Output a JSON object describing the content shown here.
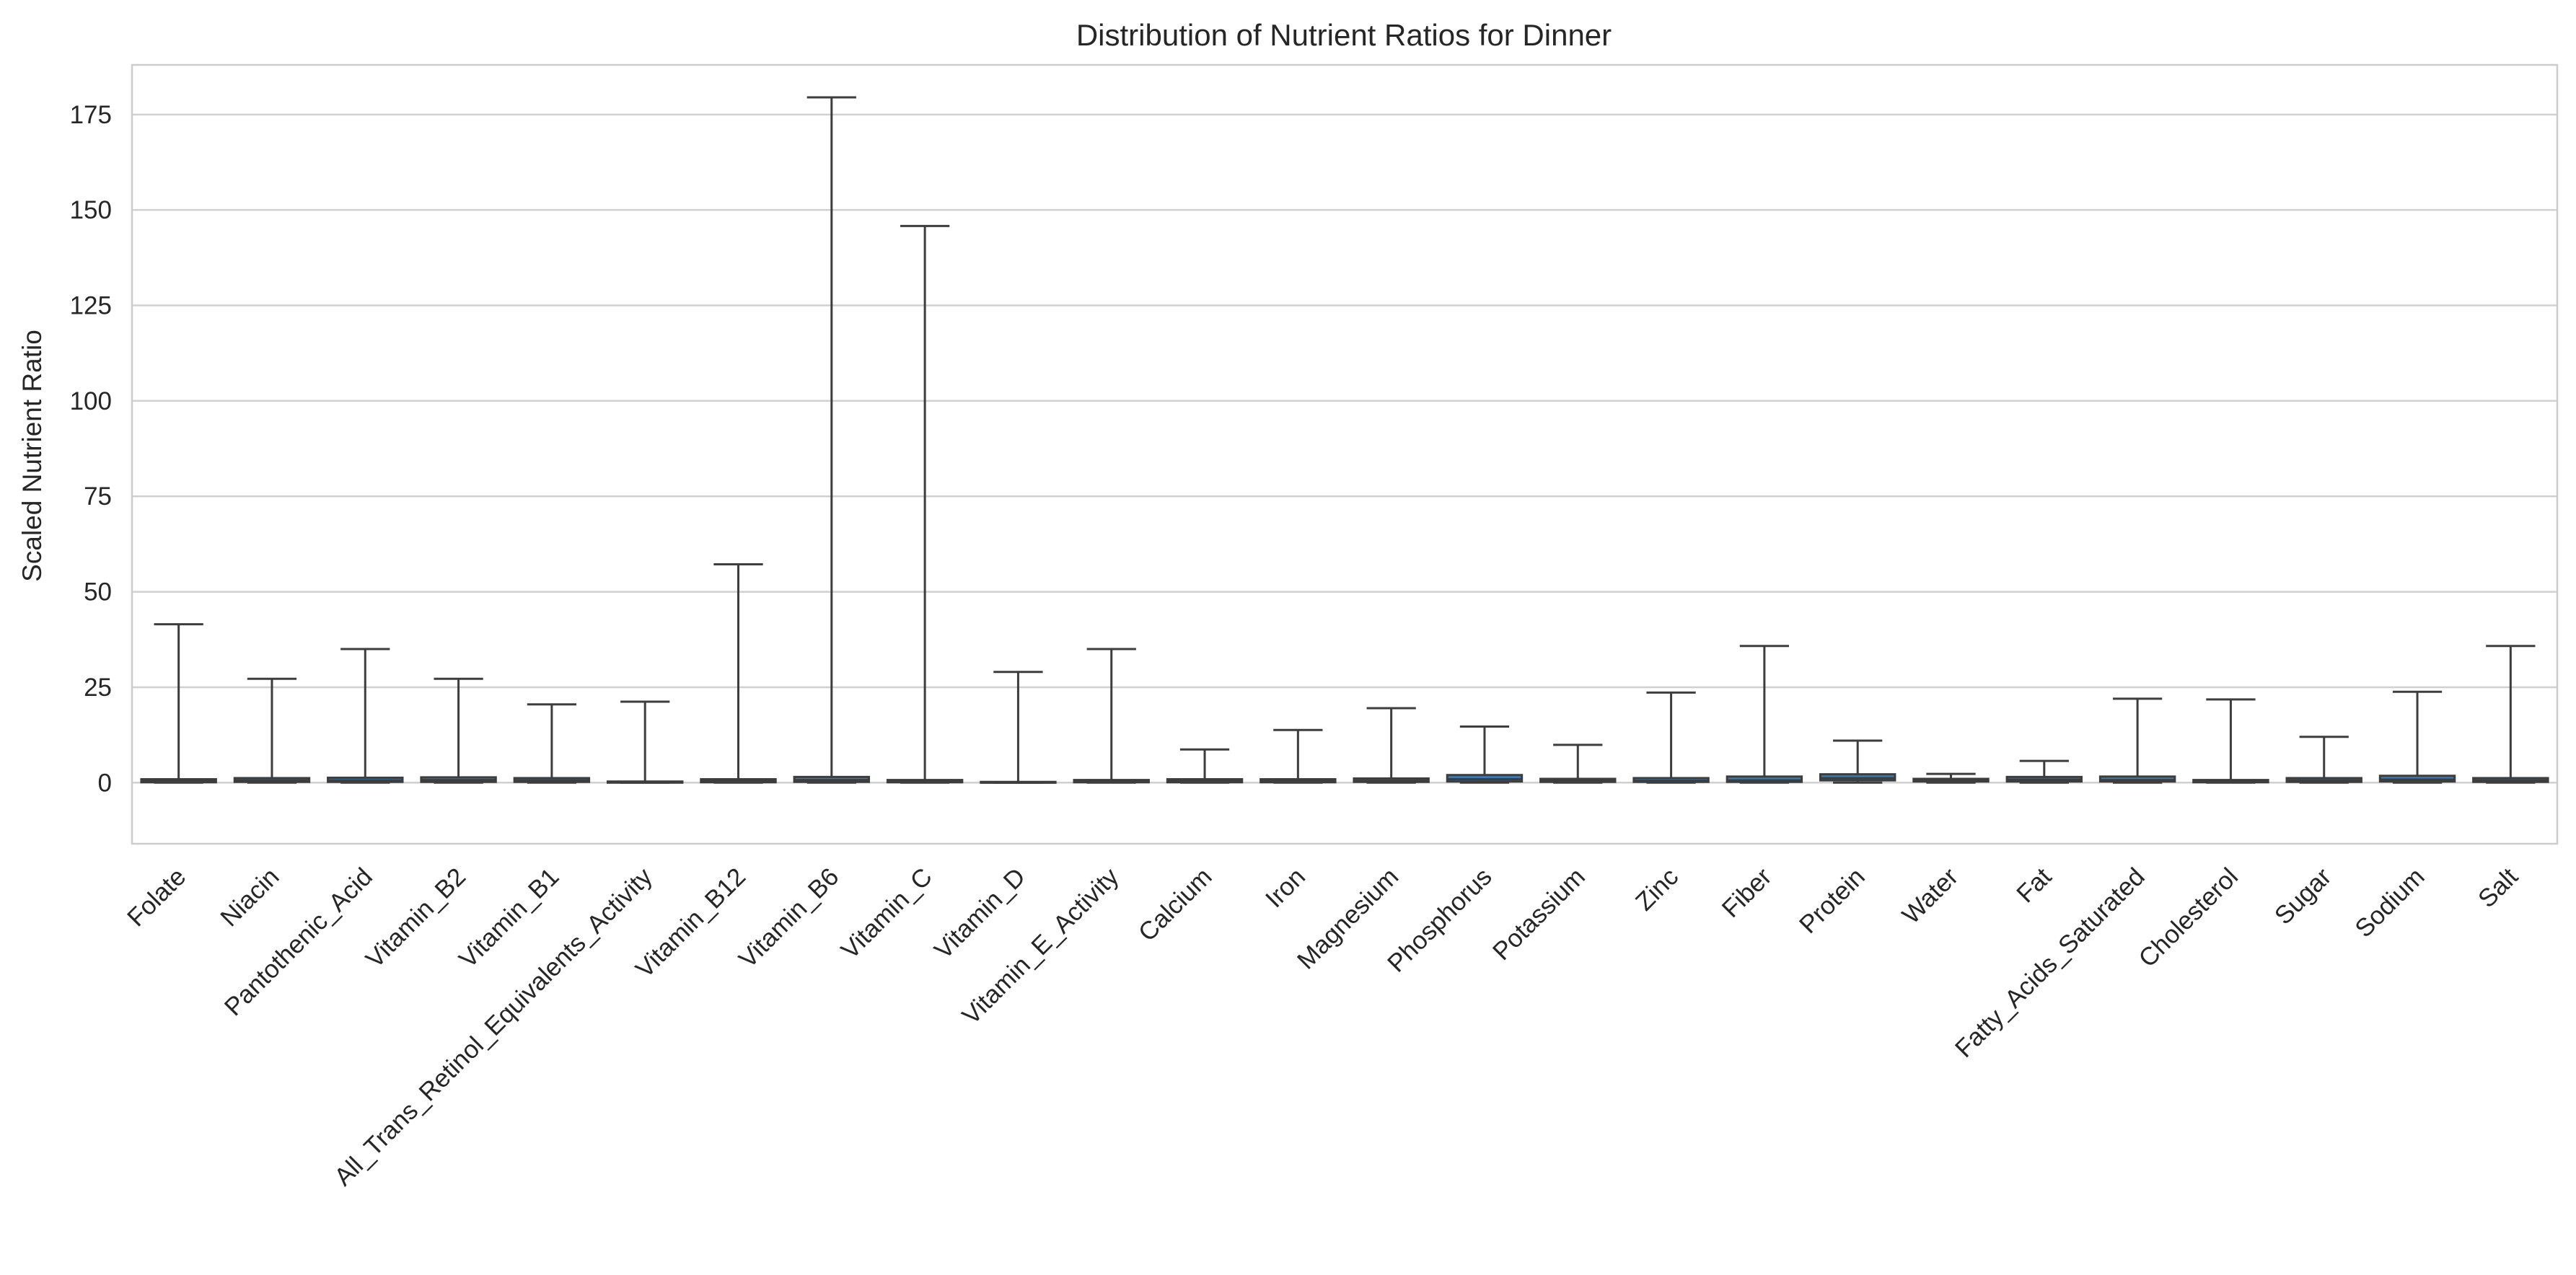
{
  "chart_data": {
    "type": "box",
    "title": "Distribution of Nutrient Ratios for Dinner",
    "xlabel": "",
    "ylabel": "Scaled Nutrient Ratio",
    "ylim": [
      -16,
      188
    ],
    "yticks": [
      0,
      25,
      50,
      75,
      100,
      125,
      150,
      175
    ],
    "grid": "horizontal",
    "box_color": "#3a7cb3",
    "line_color": "#3d3d3d",
    "categories": [
      "Folate",
      "Niacin",
      "Pantothenic_Acid",
      "Vitamin_B2",
      "Vitamin_B1",
      "All_Trans_Retinol_Equivalents_Activity",
      "Vitamin_B12",
      "Vitamin_B6",
      "Vitamin_C",
      "Vitamin_D",
      "Vitamin_E_Activity",
      "Calcium",
      "Iron",
      "Magnesium",
      "Phosphorus",
      "Potassium",
      "Zinc",
      "Fiber",
      "Protein",
      "Water",
      "Fat",
      "Fatty_Acids_Saturated",
      "Cholesterol",
      "Sugar",
      "Sodium",
      "Salt"
    ],
    "boxes": [
      {
        "min": 0,
        "q1": 0.1,
        "median": 0.4,
        "q3": 0.9,
        "max": 41.5
      },
      {
        "min": 0,
        "q1": 0.2,
        "median": 0.6,
        "q3": 1.2,
        "max": 27.2
      },
      {
        "min": 0,
        "q1": 0.2,
        "median": 0.6,
        "q3": 1.3,
        "max": 35.0
      },
      {
        "min": 0,
        "q1": 0.2,
        "median": 0.7,
        "q3": 1.4,
        "max": 27.2
      },
      {
        "min": 0,
        "q1": 0.2,
        "median": 0.6,
        "q3": 1.2,
        "max": 20.5
      },
      {
        "min": 0,
        "q1": 0.0,
        "median": 0.1,
        "q3": 0.3,
        "max": 21.2
      },
      {
        "min": 0,
        "q1": 0.1,
        "median": 0.4,
        "q3": 0.9,
        "max": 57.2
      },
      {
        "min": 0,
        "q1": 0.2,
        "median": 0.7,
        "q3": 1.5,
        "max": 179.5
      },
      {
        "min": 0,
        "q1": 0.1,
        "median": 0.3,
        "q3": 0.7,
        "max": 145.8
      },
      {
        "min": 0,
        "q1": 0.0,
        "median": 0.0,
        "q3": 0.2,
        "max": 29.0
      },
      {
        "min": 0,
        "q1": 0.1,
        "median": 0.3,
        "q3": 0.7,
        "max": 35.0
      },
      {
        "min": 0,
        "q1": 0.1,
        "median": 0.4,
        "q3": 0.9,
        "max": 8.7
      },
      {
        "min": 0,
        "q1": 0.1,
        "median": 0.4,
        "q3": 0.9,
        "max": 13.8
      },
      {
        "min": 0,
        "q1": 0.2,
        "median": 0.5,
        "q3": 1.1,
        "max": 19.5
      },
      {
        "min": 0,
        "q1": 0.3,
        "median": 0.9,
        "q3": 2.0,
        "max": 14.7
      },
      {
        "min": 0,
        "q1": 0.2,
        "median": 0.5,
        "q3": 1.0,
        "max": 9.9
      },
      {
        "min": 0,
        "q1": 0.2,
        "median": 0.5,
        "q3": 1.2,
        "max": 23.6
      },
      {
        "min": 0,
        "q1": 0.2,
        "median": 0.6,
        "q3": 1.6,
        "max": 35.8
      },
      {
        "min": 0,
        "q1": 0.6,
        "median": 1.2,
        "q3": 2.2,
        "max": 11.0
      },
      {
        "min": 0,
        "q1": 0.3,
        "median": 0.6,
        "q3": 1.0,
        "max": 2.3
      },
      {
        "min": 0,
        "q1": 0.3,
        "median": 0.8,
        "q3": 1.5,
        "max": 5.7
      },
      {
        "min": 0,
        "q1": 0.3,
        "median": 0.7,
        "q3": 1.6,
        "max": 22.0
      },
      {
        "min": 0,
        "q1": 0.1,
        "median": 0.3,
        "q3": 0.7,
        "max": 21.8
      },
      {
        "min": 0,
        "q1": 0.2,
        "median": 0.6,
        "q3": 1.2,
        "max": 12.0
      },
      {
        "min": 0,
        "q1": 0.3,
        "median": 0.8,
        "q3": 1.8,
        "max": 23.8
      },
      {
        "min": 0,
        "q1": 0.2,
        "median": 0.6,
        "q3": 1.2,
        "max": 35.8
      }
    ]
  }
}
